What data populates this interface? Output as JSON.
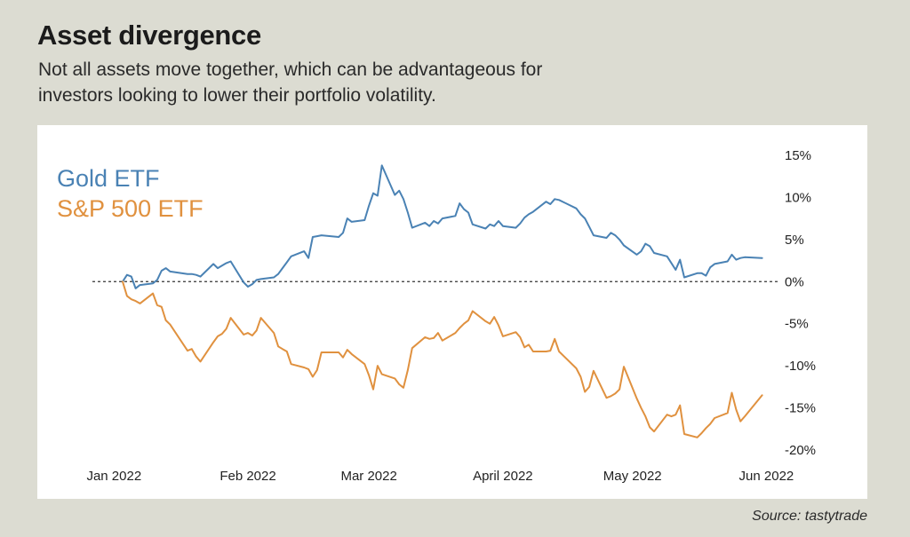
{
  "header": {
    "title": "Asset divergence",
    "subtitle": "Not all assets move together, which can be advantageous for investors looking to lower their portfolio volatility."
  },
  "footer": {
    "source": "Source: tastytrade"
  },
  "colors": {
    "gold": "#4a82b4",
    "sp500": "#e0913f",
    "background": "#dcdcd2"
  },
  "chart_data": {
    "type": "line",
    "title": "Asset divergence",
    "xlabel": "",
    "ylabel": "",
    "ylim": [
      -20,
      15
    ],
    "y_ticks": [
      15,
      10,
      5,
      0,
      -5,
      -10,
      -15,
      -20
    ],
    "y_tick_labels": [
      "15%",
      "10%",
      "5%",
      "0%",
      "-5%",
      "-10%",
      "-15%",
      "-20%"
    ],
    "x_tick_labels": [
      "Jan 2022",
      "Feb 2022",
      "Mar 2022",
      "April 2022",
      "May 2022",
      "Jun 2022"
    ],
    "x_tick_dates": [
      "2022-01-01",
      "2022-02-01",
      "2022-03-01",
      "2022-04-01",
      "2022-05-01",
      "2022-06-01"
    ],
    "x_range": [
      "2021-12-27",
      "2022-06-04"
    ],
    "zero_line": "dashed",
    "grid": false,
    "legend": "top-left",
    "series": [
      {
        "name": "Gold ETF",
        "color": "#4a82b4",
        "x": [
          "2022-01-03",
          "2022-01-04",
          "2022-01-05",
          "2022-01-06",
          "2022-01-07",
          "2022-01-10",
          "2022-01-11",
          "2022-01-12",
          "2022-01-13",
          "2022-01-14",
          "2022-01-18",
          "2022-01-19",
          "2022-01-20",
          "2022-01-21",
          "2022-01-24",
          "2022-01-25",
          "2022-01-26",
          "2022-01-27",
          "2022-01-28",
          "2022-01-31",
          "2022-02-01",
          "2022-02-02",
          "2022-02-03",
          "2022-02-04",
          "2022-02-07",
          "2022-02-08",
          "2022-02-09",
          "2022-02-10",
          "2022-02-11",
          "2022-02-14",
          "2022-02-15",
          "2022-02-16",
          "2022-02-17",
          "2022-02-18",
          "2022-02-22",
          "2022-02-23",
          "2022-02-24",
          "2022-02-25",
          "2022-02-28",
          "2022-03-01",
          "2022-03-02",
          "2022-03-03",
          "2022-03-04",
          "2022-03-07",
          "2022-03-08",
          "2022-03-09",
          "2022-03-10",
          "2022-03-11",
          "2022-03-14",
          "2022-03-15",
          "2022-03-16",
          "2022-03-17",
          "2022-03-18",
          "2022-03-21",
          "2022-03-22",
          "2022-03-23",
          "2022-03-24",
          "2022-03-25",
          "2022-03-28",
          "2022-03-29",
          "2022-03-30",
          "2022-03-31",
          "2022-04-01",
          "2022-04-04",
          "2022-04-05",
          "2022-04-06",
          "2022-04-07",
          "2022-04-08",
          "2022-04-11",
          "2022-04-12",
          "2022-04-13",
          "2022-04-14",
          "2022-04-18",
          "2022-04-19",
          "2022-04-20",
          "2022-04-21",
          "2022-04-22",
          "2022-04-25",
          "2022-04-26",
          "2022-04-27",
          "2022-04-28",
          "2022-04-29",
          "2022-05-02",
          "2022-05-03",
          "2022-05-04",
          "2022-05-05",
          "2022-05-06",
          "2022-05-09",
          "2022-05-10",
          "2022-05-11",
          "2022-05-12",
          "2022-05-13",
          "2022-05-16",
          "2022-05-17",
          "2022-05-18",
          "2022-05-19",
          "2022-05-20",
          "2022-05-23",
          "2022-05-24",
          "2022-05-25",
          "2022-05-26",
          "2022-05-27",
          "2022-05-31"
        ],
        "values": [
          0,
          0.8,
          0.6,
          -0.8,
          -0.4,
          -0.2,
          0.2,
          1.3,
          1.6,
          1.2,
          0.9,
          0.9,
          0.8,
          0.6,
          2.1,
          1.6,
          1.9,
          2.2,
          2.4,
          -0.1,
          -0.6,
          -0.3,
          0.2,
          0.3,
          0.5,
          0.9,
          1.6,
          2.3,
          3.0,
          3.6,
          2.8,
          5.3,
          5.4,
          5.5,
          5.3,
          5.8,
          7.5,
          7.1,
          7.3,
          9.0,
          10.5,
          10.2,
          13.8,
          10.3,
          10.8,
          9.8,
          8.2,
          6.4,
          7.0,
          6.6,
          7.2,
          6.9,
          7.5,
          7.8,
          9.3,
          8.6,
          8.2,
          6.8,
          6.3,
          6.8,
          6.6,
          7.2,
          6.6,
          6.4,
          6.9,
          7.6,
          8.0,
          8.3,
          9.5,
          9.2,
          9.8,
          9.7,
          8.7,
          8.0,
          7.5,
          6.5,
          5.5,
          5.2,
          5.8,
          5.5,
          5.0,
          4.3,
          3.2,
          3.6,
          4.5,
          4.2,
          3.4,
          3.0,
          2.2,
          1.4,
          2.6,
          0.5,
          1.0,
          1.0,
          0.7,
          1.7,
          2.1,
          2.4,
          3.2,
          2.6,
          2.8,
          2.9,
          2.8
        ]
      },
      {
        "name": "S&P 500 ETF",
        "color": "#e0913f",
        "x": [
          "2022-01-03",
          "2022-01-04",
          "2022-01-05",
          "2022-01-06",
          "2022-01-07",
          "2022-01-10",
          "2022-01-11",
          "2022-01-12",
          "2022-01-13",
          "2022-01-14",
          "2022-01-18",
          "2022-01-19",
          "2022-01-20",
          "2022-01-21",
          "2022-01-24",
          "2022-01-25",
          "2022-01-26",
          "2022-01-27",
          "2022-01-28",
          "2022-01-31",
          "2022-02-01",
          "2022-02-02",
          "2022-02-03",
          "2022-02-04",
          "2022-02-07",
          "2022-02-08",
          "2022-02-09",
          "2022-02-10",
          "2022-02-11",
          "2022-02-14",
          "2022-02-15",
          "2022-02-16",
          "2022-02-17",
          "2022-02-18",
          "2022-02-22",
          "2022-02-23",
          "2022-02-24",
          "2022-02-25",
          "2022-02-28",
          "2022-03-01",
          "2022-03-02",
          "2022-03-03",
          "2022-03-04",
          "2022-03-07",
          "2022-03-08",
          "2022-03-09",
          "2022-03-10",
          "2022-03-11",
          "2022-03-14",
          "2022-03-15",
          "2022-03-16",
          "2022-03-17",
          "2022-03-18",
          "2022-03-21",
          "2022-03-22",
          "2022-03-23",
          "2022-03-24",
          "2022-03-25",
          "2022-03-28",
          "2022-03-29",
          "2022-03-30",
          "2022-03-31",
          "2022-04-01",
          "2022-04-04",
          "2022-04-05",
          "2022-04-06",
          "2022-04-07",
          "2022-04-08",
          "2022-04-11",
          "2022-04-12",
          "2022-04-13",
          "2022-04-14",
          "2022-04-18",
          "2022-04-19",
          "2022-04-20",
          "2022-04-21",
          "2022-04-22",
          "2022-04-25",
          "2022-04-26",
          "2022-04-27",
          "2022-04-28",
          "2022-04-29",
          "2022-05-02",
          "2022-05-03",
          "2022-05-04",
          "2022-05-05",
          "2022-05-06",
          "2022-05-09",
          "2022-05-10",
          "2022-05-11",
          "2022-05-12",
          "2022-05-13",
          "2022-05-16",
          "2022-05-17",
          "2022-05-18",
          "2022-05-19",
          "2022-05-20",
          "2022-05-23",
          "2022-05-24",
          "2022-05-25",
          "2022-05-26",
          "2022-05-27",
          "2022-05-31"
        ],
        "values": [
          0,
          -1.7,
          -2.1,
          -2.3,
          -2.6,
          -1.4,
          -2.8,
          -3.0,
          -4.6,
          -5.1,
          -8.2,
          -8.0,
          -8.9,
          -9.5,
          -7.2,
          -6.5,
          -6.2,
          -5.6,
          -4.3,
          -6.3,
          -6.1,
          -6.4,
          -5.8,
          -4.3,
          -6.1,
          -7.7,
          -8.0,
          -8.3,
          -9.8,
          -10.2,
          -10.4,
          -11.3,
          -10.5,
          -8.4,
          -8.4,
          -9.0,
          -8.1,
          -8.6,
          -9.8,
          -11.1,
          -12.8,
          -10.0,
          -11.0,
          -11.5,
          -12.2,
          -12.6,
          -10.5,
          -7.9,
          -6.6,
          -6.8,
          -6.7,
          -6.1,
          -7.0,
          -6.1,
          -5.5,
          -5.0,
          -4.6,
          -3.5,
          -4.7,
          -5.0,
          -4.2,
          -5.2,
          -6.5,
          -6.0,
          -6.6,
          -7.8,
          -7.5,
          -8.3,
          -8.3,
          -8.2,
          -6.8,
          -8.3,
          -10.3,
          -11.3,
          -13.1,
          -12.5,
          -10.6,
          -13.8,
          -13.6,
          -13.3,
          -12.8,
          -10.1,
          -13.9,
          -15.0,
          -16.0,
          -17.3,
          -17.8,
          -15.8,
          -16.0,
          -15.8,
          -14.7,
          -18.1,
          -18.5,
          -18.0,
          -17.4,
          -16.9,
          -16.2,
          -15.6,
          -13.2,
          -15.2,
          -16.6,
          -16.0,
          -13.5
        ]
      }
    ]
  }
}
